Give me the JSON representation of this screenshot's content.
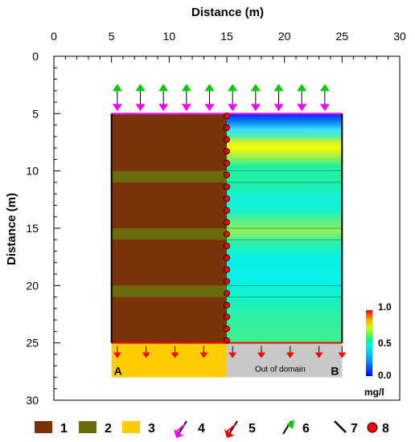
{
  "x_axis": {
    "title": "Distance (m)",
    "range": [
      0,
      30
    ],
    "ticks": [
      "0",
      "5",
      "10",
      "15",
      "20",
      "25",
      "30"
    ]
  },
  "y_axis": {
    "title": "Distance (m)",
    "range": [
      0,
      30
    ],
    "ticks": [
      "0",
      "5",
      "10",
      "15",
      "20",
      "25",
      "30"
    ]
  },
  "model": {
    "left_block": {
      "x": [
        5,
        15
      ],
      "y": [
        5,
        25
      ]
    },
    "right_block": {
      "x": [
        15,
        25
      ],
      "y": [
        5,
        25
      ]
    },
    "green_bands_depth": [
      [
        10,
        11
      ],
      [
        15,
        16
      ],
      [
        20,
        21
      ]
    ],
    "wall_dots_count": 20,
    "top_arrows_x": [
      5.5,
      7.5,
      9.5,
      11.5,
      13.5,
      15.5,
      17.5,
      19.5,
      21.5,
      23.5
    ],
    "bottom_arrows_x": [
      5.5,
      8,
      10.5,
      13,
      15.5,
      18,
      20.5,
      23,
      25
    ]
  },
  "labels": {
    "corner_a": "A",
    "corner_b": "B",
    "out_of_domain": "Out of domain"
  },
  "colorbar": {
    "min_label": "0.0",
    "mid_label": "0.5",
    "max_label": "1.0",
    "unit": "mg/l"
  },
  "legend": [
    {
      "number": "1",
      "kind": "swatch",
      "color": "#7a3308"
    },
    {
      "number": "2",
      "kind": "swatch",
      "color": "#6b6b0c"
    },
    {
      "number": "3",
      "kind": "swatch",
      "color": "#ffcc00"
    },
    {
      "number": "4",
      "kind": "arrow",
      "color": "#ff00ff"
    },
    {
      "number": "5",
      "kind": "arrow",
      "color": "#ff0000"
    },
    {
      "number": "6",
      "kind": "arrow",
      "color": "#00cc00"
    },
    {
      "number": "7",
      "kind": "line",
      "color": "#000000"
    },
    {
      "number": "8",
      "kind": "dot",
      "color": "#ff0000"
    }
  ],
  "colors": {
    "brown": "#7a3308",
    "olive": "#6b6b0c",
    "yellow": "#ffcc00",
    "grey": "#c8c8c8",
    "magenta": "#ff00ff",
    "red": "#ff0000",
    "green": "#00cc00"
  }
}
